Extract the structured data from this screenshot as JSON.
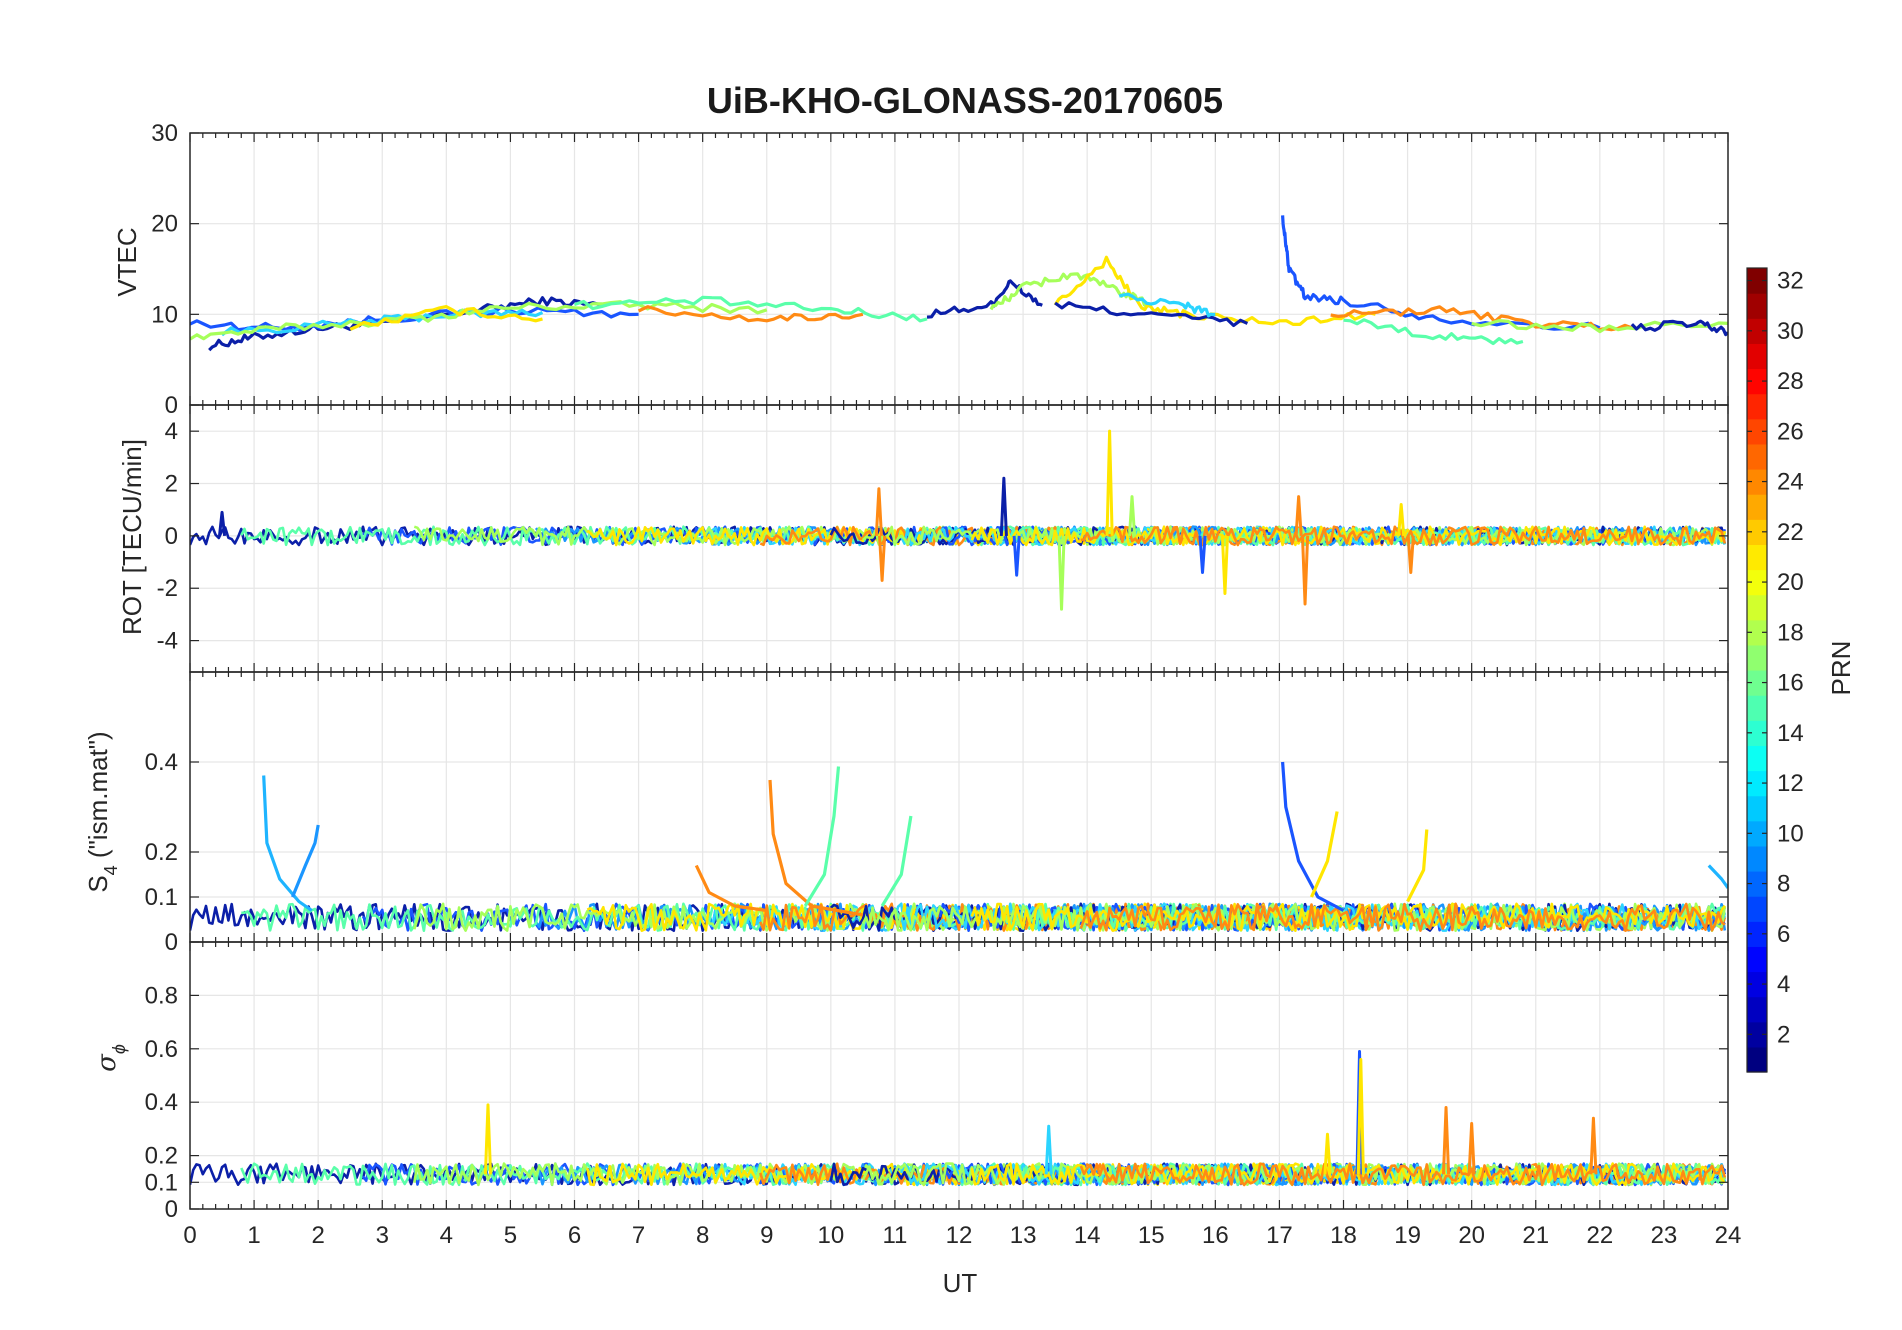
{
  "chart_data": [
    {
      "type": "line",
      "title": "UiB-KHO-GLONASS-20170605",
      "ylabel": "VTEC",
      "ylim": [
        0,
        30
      ],
      "yticks": [
        0,
        10,
        20,
        30
      ],
      "xlim": [
        0,
        24
      ],
      "grid": true,
      "series": [
        {
          "color": "#0b1fa8",
          "x": [
            0.3,
            1.0,
            2.0,
            3.0,
            4.5,
            5.5,
            6.5
          ],
          "y": [
            6.5,
            7.5,
            8.5,
            9.0,
            10.5,
            11.5,
            11.0
          ]
        },
        {
          "color": "#1a55ff",
          "x": [
            0.0,
            1.5,
            3.0,
            5.0,
            7.0
          ],
          "y": [
            9.0,
            8.5,
            9.5,
            10.5,
            10.0
          ]
        },
        {
          "color": "#2bd4ff",
          "x": [
            0.5,
            2.5,
            4.0,
            5.5
          ],
          "y": [
            8.0,
            9.0,
            10.0,
            10.2
          ]
        },
        {
          "color": "#a6ff5a",
          "x": [
            0.0,
            1.5,
            3.5,
            5.0,
            7.0,
            9.0
          ],
          "y": [
            7.5,
            8.5,
            9.5,
            10.8,
            11.0,
            10.5
          ]
        },
        {
          "color": "#ffe600",
          "x": [
            2.5,
            4.0,
            5.5
          ],
          "y": [
            8.5,
            10.5,
            9.5
          ]
        },
        {
          "color": "#ff8a14",
          "x": [
            7.0,
            9.0,
            10.5
          ],
          "y": [
            10.5,
            9.5,
            10.0
          ]
        },
        {
          "color": "#5affaa",
          "x": [
            6.0,
            8.0,
            10.0,
            11.5
          ],
          "y": [
            11.0,
            11.5,
            10.5,
            9.5
          ]
        },
        {
          "color": "#0b1fa8",
          "x": [
            11.5,
            12.5,
            12.8,
            13.3
          ],
          "y": [
            10.0,
            11.0,
            13.5,
            11.0
          ]
        },
        {
          "color": "#a6ff5a",
          "x": [
            12.5,
            13.0,
            13.8,
            14.5,
            15.0
          ],
          "y": [
            10.5,
            13.0,
            14.5,
            12.5,
            11.0
          ]
        },
        {
          "color": "#ffe600",
          "x": [
            13.5,
            14.3,
            14.8,
            15.5,
            17.0,
            18.5
          ],
          "y": [
            11.0,
            16.0,
            11.0,
            10.0,
            9.0,
            10.0
          ]
        },
        {
          "color": "#0b1fa8",
          "x": [
            13.5,
            15.0,
            16.5
          ],
          "y": [
            11.0,
            10.0,
            9.0
          ]
        },
        {
          "color": "#2bd4ff",
          "x": [
            14.5,
            15.5,
            16.0
          ],
          "y": [
            12.0,
            11.0,
            10.0
          ]
        },
        {
          "color": "#1a55ff",
          "x": [
            17.05,
            17.15,
            17.4,
            18.0,
            19.5,
            22.0
          ],
          "y": [
            20.5,
            15.0,
            12.0,
            11.5,
            9.5,
            8.5
          ]
        },
        {
          "color": "#ff8a14",
          "x": [
            17.8,
            19.5,
            21.0,
            22.5
          ],
          "y": [
            10.0,
            10.5,
            9.0,
            8.5
          ]
        },
        {
          "color": "#5affaa",
          "x": [
            18.0,
            19.5,
            20.8
          ],
          "y": [
            9.5,
            7.5,
            7.0
          ]
        },
        {
          "color": "#a6ff5a",
          "x": [
            20.0,
            22.0,
            24.0
          ],
          "y": [
            9.0,
            8.5,
            9.0
          ]
        },
        {
          "color": "#0b1fa8",
          "x": [
            22.5,
            23.5,
            24.0
          ],
          "y": [
            8.5,
            9.0,
            8.0
          ]
        }
      ]
    },
    {
      "type": "line",
      "ylabel": "ROT [TECU/min]",
      "ylim": [
        -5.2,
        5
      ],
      "yticks": [
        -4,
        -2,
        0,
        2,
        4
      ],
      "xlim": [
        0,
        24
      ],
      "grid": true,
      "spikes": [
        {
          "x": 0.5,
          "y": 0.9,
          "color": "#0b1fa8"
        },
        {
          "x": 10.75,
          "y": 1.8,
          "color": "#ff8a14"
        },
        {
          "x": 10.8,
          "y": -1.7,
          "color": "#ff8a14"
        },
        {
          "x": 12.7,
          "y": 2.2,
          "color": "#0b1fa8"
        },
        {
          "x": 12.9,
          "y": -1.5,
          "color": "#1a55ff"
        },
        {
          "x": 13.6,
          "y": -2.8,
          "color": "#a6ff5a"
        },
        {
          "x": 14.35,
          "y": 4.0,
          "color": "#ffe600"
        },
        {
          "x": 14.7,
          "y": 1.5,
          "color": "#a6ff5a"
        },
        {
          "x": 15.8,
          "y": -1.4,
          "color": "#1a55ff"
        },
        {
          "x": 16.15,
          "y": -2.2,
          "color": "#ffe600"
        },
        {
          "x": 17.4,
          "y": -2.6,
          "color": "#ff8a14"
        },
        {
          "x": 17.3,
          "y": 1.5,
          "color": "#ff8a14"
        },
        {
          "x": 18.9,
          "y": 1.2,
          "color": "#ffe600"
        },
        {
          "x": 19.05,
          "y": -1.4,
          "color": "#ff8a14"
        }
      ]
    },
    {
      "type": "line",
      "ylabel": "S4 (\"ism.mat\")",
      "ylim": [
        0,
        0.6
      ],
      "yticks": [
        0,
        0.1,
        0.2,
        0.4
      ],
      "xlim": [
        0,
        24
      ],
      "grid": true,
      "series": [
        {
          "color": "#1eb4ff",
          "x": [
            1.15,
            1.2,
            1.4,
            1.7,
            1.9
          ],
          "y": [
            0.37,
            0.22,
            0.14,
            0.09,
            0.07
          ]
        },
        {
          "color": "#1a96ff",
          "x": [
            1.6,
            1.8,
            1.95,
            2.0
          ],
          "y": [
            0.1,
            0.17,
            0.22,
            0.26
          ]
        },
        {
          "color": "#ff8a14",
          "x": [
            9.05,
            9.1,
            9.3,
            9.7,
            10.5
          ],
          "y": [
            0.36,
            0.24,
            0.13,
            0.08,
            0.06
          ]
        },
        {
          "color": "#5affaa",
          "x": [
            9.6,
            9.9,
            10.05,
            10.12
          ],
          "y": [
            0.08,
            0.15,
            0.28,
            0.39
          ]
        },
        {
          "color": "#5affaa",
          "x": [
            10.8,
            11.1,
            11.25
          ],
          "y": [
            0.08,
            0.15,
            0.28
          ]
        },
        {
          "color": "#1a55ff",
          "x": [
            17.05,
            17.1,
            17.3,
            17.6,
            18.0
          ],
          "y": [
            0.4,
            0.3,
            0.18,
            0.1,
            0.07
          ]
        },
        {
          "color": "#ffe600",
          "x": [
            17.5,
            17.75,
            17.9
          ],
          "y": [
            0.1,
            0.18,
            0.29
          ]
        },
        {
          "color": "#ffe600",
          "x": [
            19.0,
            19.25,
            19.3
          ],
          "y": [
            0.09,
            0.16,
            0.25
          ]
        },
        {
          "color": "#ff8a14",
          "x": [
            7.9,
            8.1,
            8.5,
            9.0
          ],
          "y": [
            0.17,
            0.11,
            0.08,
            0.07
          ]
        },
        {
          "color": "#1eb4ff",
          "x": [
            23.7,
            23.9,
            24.0
          ],
          "y": [
            0.17,
            0.14,
            0.12
          ]
        }
      ]
    },
    {
      "type": "line",
      "ylabel": "σφ",
      "ylim": [
        0,
        1
      ],
      "yticks": [
        0,
        0.1,
        0.2,
        0.4,
        0.6,
        0.8
      ],
      "xlim": [
        0,
        24
      ],
      "xlabel": "UT",
      "xticks": [
        0,
        1,
        2,
        3,
        4,
        5,
        6,
        7,
        8,
        9,
        10,
        11,
        12,
        13,
        14,
        15,
        16,
        17,
        18,
        19,
        20,
        21,
        22,
        23,
        24
      ],
      "grid": true,
      "spikes": [
        {
          "x": 4.65,
          "y": 0.39,
          "color": "#ffe600"
        },
        {
          "x": 18.25,
          "y": 0.59,
          "color": "#1a55ff"
        },
        {
          "x": 18.27,
          "y": 0.56,
          "color": "#ffe600"
        },
        {
          "x": 19.6,
          "y": 0.38,
          "color": "#ff8a14"
        },
        {
          "x": 21.9,
          "y": 0.34,
          "color": "#ff8a14"
        },
        {
          "x": 17.75,
          "y": 0.28,
          "color": "#ffe600"
        },
        {
          "x": 13.4,
          "y": 0.31,
          "color": "#2bd4ff"
        },
        {
          "x": 20.0,
          "y": 0.32,
          "color": "#ff8a14"
        }
      ]
    }
  ],
  "colorbar": {
    "label": "PRN",
    "min": 1,
    "max": 32,
    "ticks": [
      2,
      4,
      6,
      8,
      10,
      12,
      14,
      16,
      18,
      20,
      22,
      24,
      26,
      28,
      30,
      32
    ],
    "colormap": "jet"
  }
}
